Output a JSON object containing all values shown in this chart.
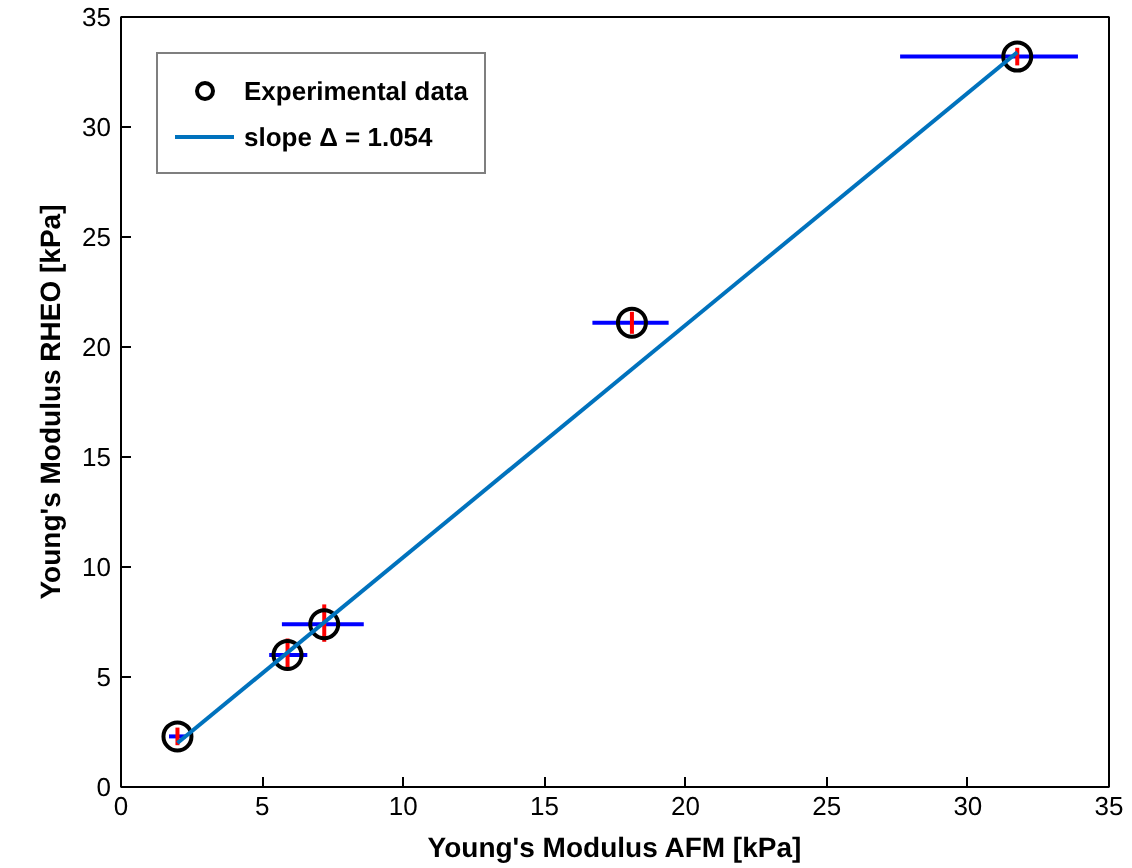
{
  "chart_data": {
    "type": "scatter",
    "xlabel": "Young's Modulus AFM [kPa]",
    "ylabel": "Young's Modulus RHEO [kPa]",
    "xlim": [
      0,
      35
    ],
    "ylim": [
      0,
      35
    ],
    "xticks": [
      0,
      5,
      10,
      15,
      20,
      25,
      30,
      35
    ],
    "yticks": [
      0,
      5,
      10,
      15,
      20,
      25,
      30,
      35
    ],
    "grid": false,
    "legend": "top left",
    "series": [
      {
        "name": "Experimental data",
        "marker": "circle",
        "color": "#000000",
        "x": [
          2.0,
          5.9,
          7.2,
          18.1,
          31.75
        ],
        "values": [
          2.3,
          6.0,
          7.4,
          21.1,
          33.2
        ],
        "errors": [
          0.4,
          [
            5.3,
            6.75
          ],
          [
            6.6,
            8.3
          ],
          0.5,
          0.4
        ],
        "xerrors": [
          0.3,
          [
            5.25,
            6.6
          ],
          [
            5.7,
            8.6
          ],
          [
            16.7,
            19.4
          ],
          [
            27.6,
            33.9
          ]
        ]
      },
      {
        "name": "slope Δ = 1.054",
        "type": "line",
        "color": "#0072bd",
        "x": [
          2.0,
          31.75
        ],
        "values": [
          2.0,
          33.4
        ]
      }
    ]
  }
}
